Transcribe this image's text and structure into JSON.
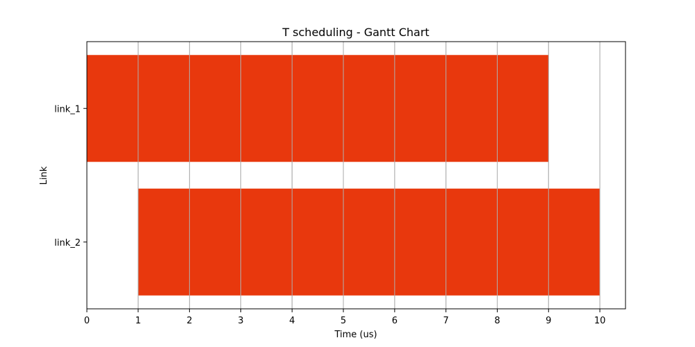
{
  "chart_data": {
    "type": "bar",
    "orientation": "horizontal",
    "subtype": "gantt",
    "title": "T scheduling - Gantt Chart",
    "xlabel": "Time (us)",
    "ylabel": "Link",
    "xlim": [
      0,
      10.5
    ],
    "xticks": [
      0,
      1,
      2,
      3,
      4,
      5,
      6,
      7,
      8,
      9,
      10
    ],
    "categories": [
      "link_1",
      "link_2"
    ],
    "tasks": [
      {
        "category": "link_1",
        "start": 0,
        "end": 9
      },
      {
        "category": "link_2",
        "start": 1,
        "end": 10
      }
    ],
    "bar_color": "#e8380d",
    "grid": "x",
    "grid_color": "#b0b0b0"
  }
}
